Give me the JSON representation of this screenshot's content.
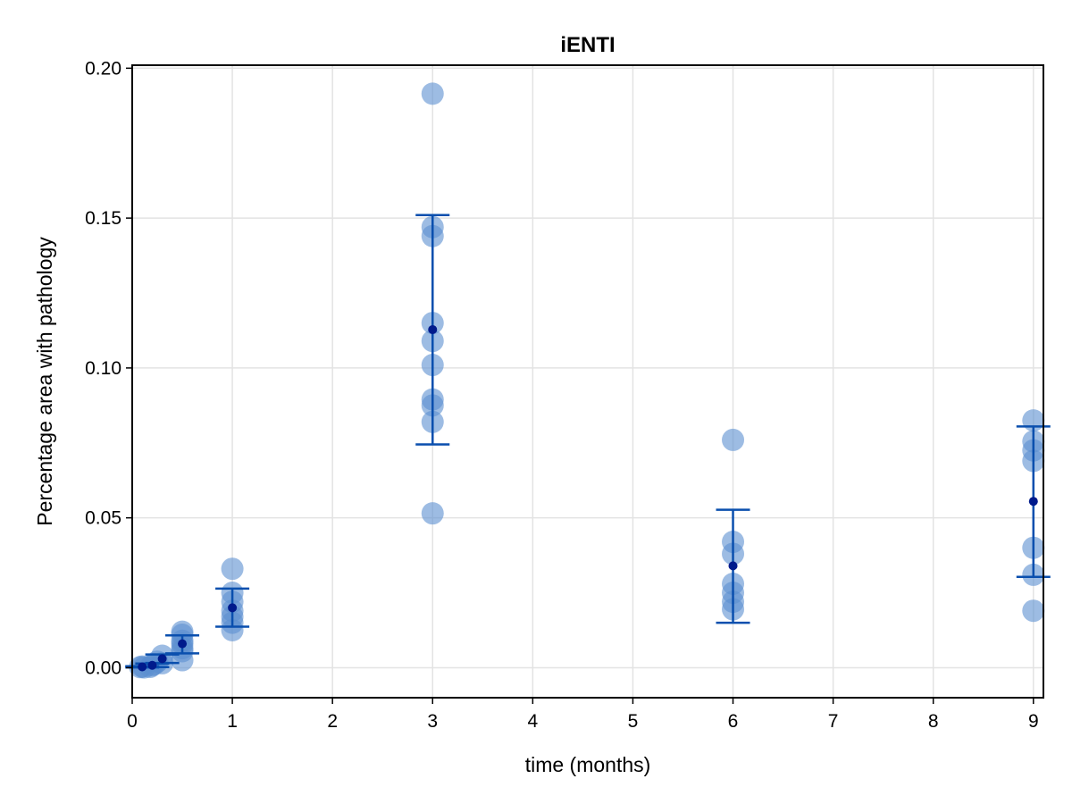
{
  "chart_data": {
    "type": "scatter",
    "title": "iENTI",
    "xlabel": "time (months)",
    "ylabel": "Percentage area with pathology",
    "xlim": [
      0,
      9.1
    ],
    "ylim": [
      -0.01,
      0.201
    ],
    "xticks": [
      0,
      1,
      2,
      3,
      4,
      5,
      6,
      7,
      8,
      9
    ],
    "yticks": [
      0.0,
      0.05,
      0.1,
      0.15,
      0.2
    ],
    "xtick_labels": [
      "0",
      "1",
      "2",
      "3",
      "4",
      "5",
      "6",
      "7",
      "8",
      "9"
    ],
    "ytick_labels": [
      "0.00",
      "0.05",
      "0.10",
      "0.15",
      "0.20"
    ],
    "grid": true,
    "legend": "none",
    "colors": {
      "points": "#5b8fd0",
      "errorbar": "#0a4fae",
      "mean": "#001a8c"
    },
    "series": [
      {
        "points": [
          {
            "x": 0.08,
            "y": 0.0002
          },
          {
            "x": 0.1,
            "y": 0.0004
          },
          {
            "x": 0.12,
            "y": 0.0001
          },
          {
            "x": 0.18,
            "y": 0.0003
          },
          {
            "x": 0.2,
            "y": 0.0008
          },
          {
            "x": 0.22,
            "y": 0.0012
          },
          {
            "x": 0.25,
            "y": 0.002
          },
          {
            "x": 0.3,
            "y": 0.004
          },
          {
            "x": 0.3,
            "y": 0.0015
          },
          {
            "x": 0.5,
            "y": 0.012
          },
          {
            "x": 0.5,
            "y": 0.011
          },
          {
            "x": 0.5,
            "y": 0.009
          },
          {
            "x": 0.5,
            "y": 0.008
          },
          {
            "x": 0.5,
            "y": 0.0065
          },
          {
            "x": 0.5,
            "y": 0.0055
          },
          {
            "x": 0.5,
            "y": 0.0025
          },
          {
            "x": 1,
            "y": 0.033
          },
          {
            "x": 1,
            "y": 0.025
          },
          {
            "x": 1,
            "y": 0.022
          },
          {
            "x": 1,
            "y": 0.019
          },
          {
            "x": 1,
            "y": 0.017
          },
          {
            "x": 1,
            "y": 0.015
          },
          {
            "x": 1,
            "y": 0.0125
          },
          {
            "x": 3,
            "y": 0.1915
          },
          {
            "x": 3,
            "y": 0.147
          },
          {
            "x": 3,
            "y": 0.144
          },
          {
            "x": 3,
            "y": 0.115
          },
          {
            "x": 3,
            "y": 0.109
          },
          {
            "x": 3,
            "y": 0.101
          },
          {
            "x": 3,
            "y": 0.0895
          },
          {
            "x": 3,
            "y": 0.0875
          },
          {
            "x": 3,
            "y": 0.082
          },
          {
            "x": 3,
            "y": 0.0515
          },
          {
            "x": 6,
            "y": 0.076
          },
          {
            "x": 6,
            "y": 0.042
          },
          {
            "x": 6,
            "y": 0.038
          },
          {
            "x": 6,
            "y": 0.028
          },
          {
            "x": 6,
            "y": 0.025
          },
          {
            "x": 6,
            "y": 0.022
          },
          {
            "x": 6,
            "y": 0.0195
          },
          {
            "x": 9,
            "y": 0.0825
          },
          {
            "x": 9,
            "y": 0.0755
          },
          {
            "x": 9,
            "y": 0.0725
          },
          {
            "x": 9,
            "y": 0.069
          },
          {
            "x": 9,
            "y": 0.04
          },
          {
            "x": 9,
            "y": 0.031
          },
          {
            "x": 9,
            "y": 0.019
          }
        ]
      }
    ],
    "means": [
      {
        "x": 0.1,
        "y": 0.0003
      },
      {
        "x": 0.2,
        "y": 0.0008
      },
      {
        "x": 0.3,
        "y": 0.003
      },
      {
        "x": 0.5,
        "y": 0.008
      },
      {
        "x": 1,
        "y": 0.02
      },
      {
        "x": 3,
        "y": 0.1128
      },
      {
        "x": 6,
        "y": 0.034
      },
      {
        "x": 9,
        "y": 0.0555
      }
    ],
    "error_bars": [
      {
        "x": 0.1,
        "low": 0.0001,
        "high": 0.0005
      },
      {
        "x": 0.2,
        "low": 0.0002,
        "high": 0.0014
      },
      {
        "x": 0.3,
        "low": 0.0016,
        "high": 0.0044
      },
      {
        "x": 0.5,
        "low": 0.0048,
        "high": 0.0108
      },
      {
        "x": 1,
        "low": 0.0137,
        "high": 0.0264
      },
      {
        "x": 3,
        "low": 0.0745,
        "high": 0.151
      },
      {
        "x": 6,
        "low": 0.015,
        "high": 0.0527
      },
      {
        "x": 9,
        "low": 0.0303,
        "high": 0.0805
      }
    ]
  }
}
